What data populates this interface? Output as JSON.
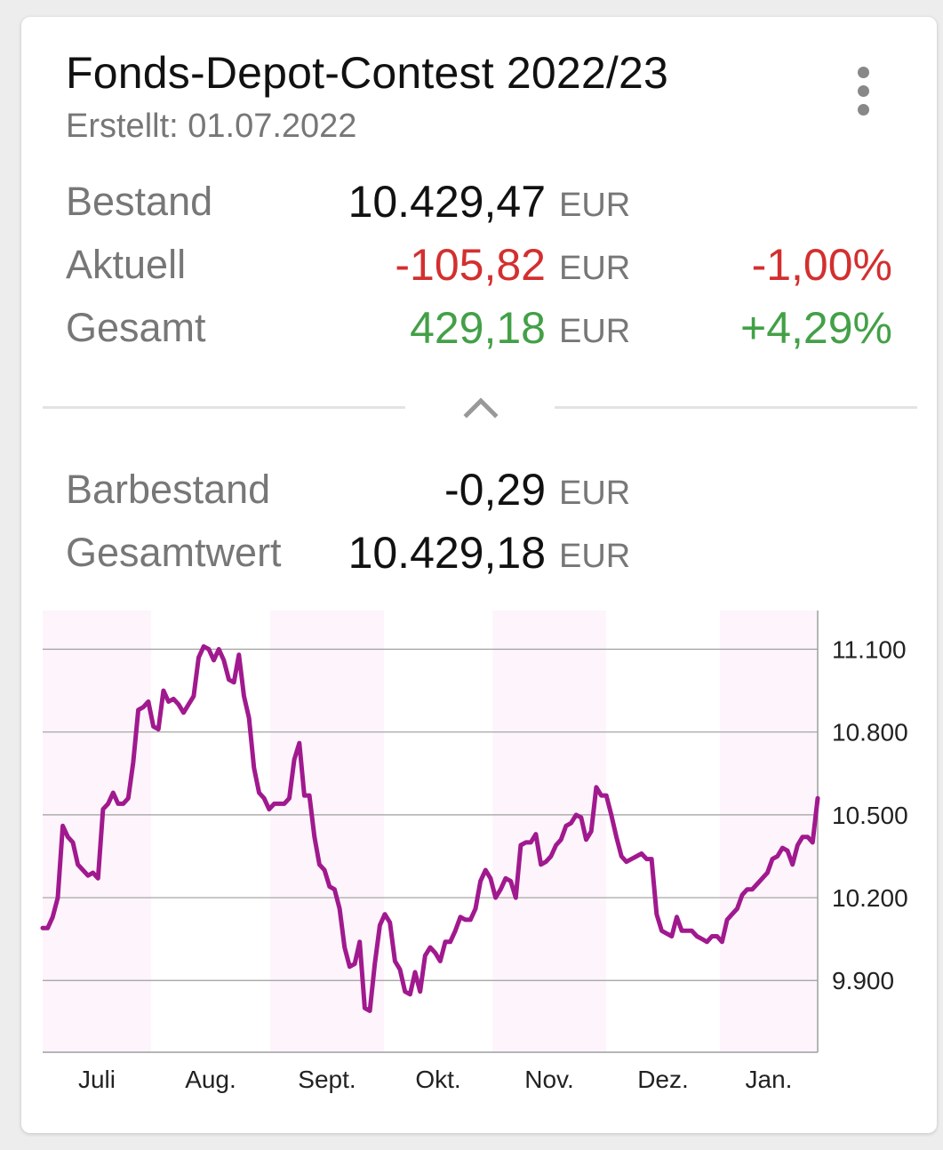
{
  "header": {
    "title": "Fonds-Depot-Contest 2022/23",
    "subtitle": "Erstellt: 01.07.2022",
    "menu_icon": "more-vert-icon"
  },
  "summary": {
    "bestand": {
      "label": "Bestand",
      "value": "10.429,47",
      "currency": "EUR"
    },
    "aktuell": {
      "label": "Aktuell",
      "value": "-105,82",
      "currency": "EUR",
      "percent": "-1,00%"
    },
    "gesamt": {
      "label": "Gesamt",
      "value": "429,18",
      "currency": "EUR",
      "percent": "+4,29%"
    }
  },
  "collapse_icon": "chevron-up-icon",
  "details": {
    "barbestand": {
      "label": "Barbestand",
      "value": "-0,29",
      "currency": "EUR"
    },
    "gesamtwert": {
      "label": "Gesamtwert",
      "value": "10.429,18",
      "currency": "EUR"
    }
  },
  "colors": {
    "negative": "#d32f2f",
    "positive": "#43a047",
    "line": "#a1198e",
    "band": "#fdf5fb"
  },
  "chart_data": {
    "type": "line",
    "months": [
      "Juli",
      "Aug.",
      "Sept.",
      "Okt.",
      "Nov.",
      "Dez.",
      "Jan."
    ],
    "y_ticks": [
      11100,
      10800,
      10500,
      10200,
      9900
    ],
    "y_tick_labels": [
      "11.100",
      "10.800",
      "10.500",
      "10.200",
      "9.900"
    ],
    "ylim": [
      9640,
      11240
    ],
    "grid": true,
    "series": [
      {
        "values": [
          10090,
          10090,
          10130,
          10200,
          10460,
          10420,
          10400,
          10320,
          10300,
          10280,
          10290,
          10270,
          10520,
          10540,
          10580,
          10540,
          10540,
          10560,
          10690,
          10880,
          10890,
          10910,
          10820,
          10810,
          10950,
          10910,
          10920,
          10900,
          10870,
          10900,
          10930,
          11070,
          11110,
          11100,
          11060,
          11100,
          11060,
          10990,
          10980,
          11080,
          10930,
          10850,
          10670,
          10580,
          10560,
          10520,
          10540,
          10540,
          10540,
          10560,
          10700,
          10760,
          10570,
          10570,
          10420,
          10320,
          10300,
          10240,
          10230,
          10160,
          10020,
          9950,
          9960,
          10040,
          9800,
          9790,
          9960,
          10100,
          10140,
          10110,
          9970,
          9940,
          9860,
          9850,
          9930,
          9860,
          9990,
          10020,
          10000,
          9970,
          10040,
          10040,
          10080,
          10130,
          10120,
          10120,
          10160,
          10260,
          10300,
          10270,
          10200,
          10230,
          10270,
          10260,
          10200,
          10390,
          10400,
          10400,
          10430,
          10320,
          10330,
          10350,
          10390,
          10410,
          10460,
          10470,
          10500,
          10490,
          10410,
          10440,
          10600,
          10570,
          10570,
          10500,
          10420,
          10350,
          10330,
          10340,
          10350,
          10360,
          10340,
          10340,
          10140,
          10080,
          10070,
          10060,
          10130,
          10080,
          10080,
          10080,
          10060,
          10050,
          10040,
          10060,
          10060,
          10040,
          10120,
          10140,
          10160,
          10210,
          10230,
          10230,
          10250,
          10270,
          10290,
          10340,
          10350,
          10380,
          10370,
          10320,
          10390,
          10420,
          10420,
          10400,
          10560
        ]
      }
    ]
  }
}
